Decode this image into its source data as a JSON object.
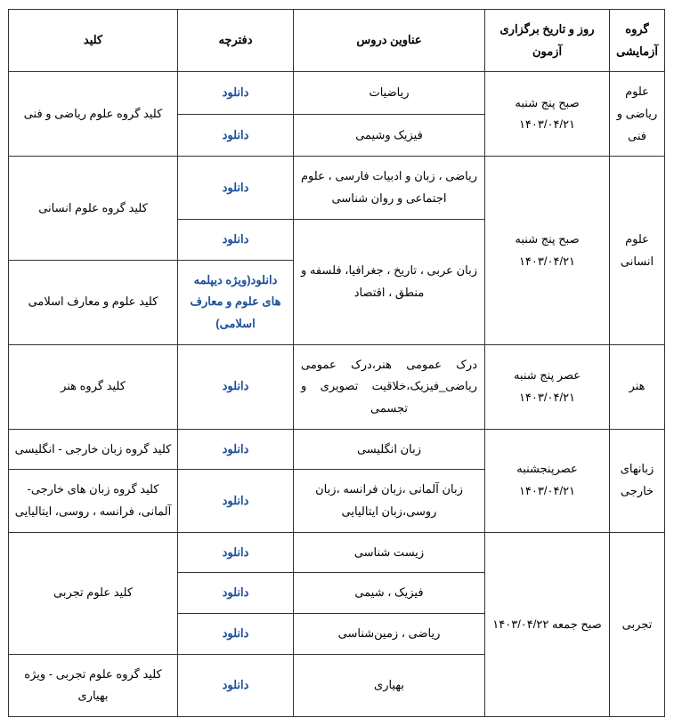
{
  "headers": {
    "group": "گروه آزمایشی",
    "date": "روز و تاریخ برگزاری آزمون",
    "subjects": "عناوین دروس",
    "booklet": "دفترچه",
    "key": "کلید"
  },
  "groups": {
    "math": "علوم ریاضی و فنی",
    "human": "علوم انسانی",
    "art": "هنر",
    "lang": "زبانهای خارجی",
    "exp": "تجربی"
  },
  "dates": {
    "math": "صبح پنج شنبه ۱۴۰۳/۰۴/۲۱",
    "human": "صبح پنج شنبه ۱۴۰۳/۰۴/۲۱",
    "art": "عصر پنج شنبه ۱۴۰۳/۰۴/۲۱",
    "lang": "عصرپنجشنبه ۱۴۰۳/۰۴/۲۱",
    "exp": "صبح جمعه ۱۴۰۳/۰۴/۲۲"
  },
  "subjects": {
    "math1": "ریاضیات",
    "math2": "فیزیک وشیمی",
    "human1": "ریاضی ، زبان و ادبیات فارسی ، علوم اجتماعی و   روان شناسی",
    "human2": "زبان عربی ، تاریخ ، جغرافیا، فلسفه و منطق ، اقتصاد",
    "art": "درک عمومی هنر،درک عمومی ریاضی_فیزیک،خلاقیت تصویری و تجسمی",
    "lang1": "زبان انگلیسی",
    "lang2": "زبان آلمانی ،زبان فرانسه ،زبان روسی،زبان ایتالیایی",
    "exp1": "زیست شناسی",
    "exp2": "فیزیک ، شیمی",
    "exp3": "ریاضی ، زمین‌شناسی",
    "exp4": "بهیاری"
  },
  "booklets": {
    "dl": "دانلود",
    "dl_islamic": "دانلود(ویژه دیپلمه های علوم و معارف اسلامی)"
  },
  "keys": {
    "math": "کلید گروه علوم ریاضی و فنی",
    "human": "کلید گروه علوم انسانی",
    "islamic": "کلید علوم و معارف اسلامی",
    "art": "کلید گروه هنر",
    "lang_en": "کلید گروه زبان خارجی - انگلیسی",
    "lang_other": "کلید گروه زبان های خارجی- آلمانی، فرانسه ، روسی، ایتالیایی",
    "exp": "کلید علوم تجربی",
    "exp_beh": "کلید گروه علوم تجربی - ویژه بهیاری"
  }
}
